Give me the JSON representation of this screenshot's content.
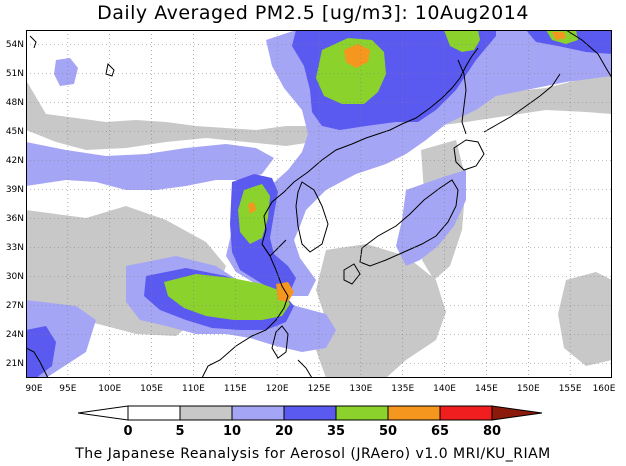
{
  "title": "Daily Averaged PM2.5 [ug/m3]: 10Aug2014",
  "footer": "The Japanese Reanalysis for Aerosol (JRAero) v1.0 MRI/KU_RIAM",
  "map": {
    "lat_labels": [
      "54N",
      "51N",
      "48N",
      "45N",
      "42N",
      "39N",
      "36N",
      "33N",
      "30N",
      "27N",
      "24N",
      "21N"
    ],
    "lon_labels": [
      "90E",
      "95E",
      "100E",
      "105E",
      "110E",
      "115E",
      "120E",
      "125E",
      "130E",
      "135E",
      "140E",
      "145E",
      "150E",
      "155E",
      "160E"
    ],
    "lon_range": [
      90,
      160
    ],
    "lat_range": [
      19.5,
      55.5
    ],
    "grid": "dotted"
  },
  "colorbar": {
    "labels": [
      "0",
      "5",
      "10",
      "20",
      "35",
      "50",
      "65",
      "80"
    ],
    "colors": [
      "#ffffff",
      "#c8c8c8",
      "#a5a5f5",
      "#5a5af0",
      "#8cd22d",
      "#f5961e",
      "#f01e1e",
      "#8b1a0a"
    ],
    "arrow_left": "#ffffff",
    "arrow_right": "#8b1a0a"
  },
  "colors": {
    "gray": "#c8c8c8",
    "light_blue": "#a5a5f5",
    "blue": "#5a5af0",
    "green": "#8cd22d",
    "orange": "#f5961e",
    "coast": "#000000"
  }
}
